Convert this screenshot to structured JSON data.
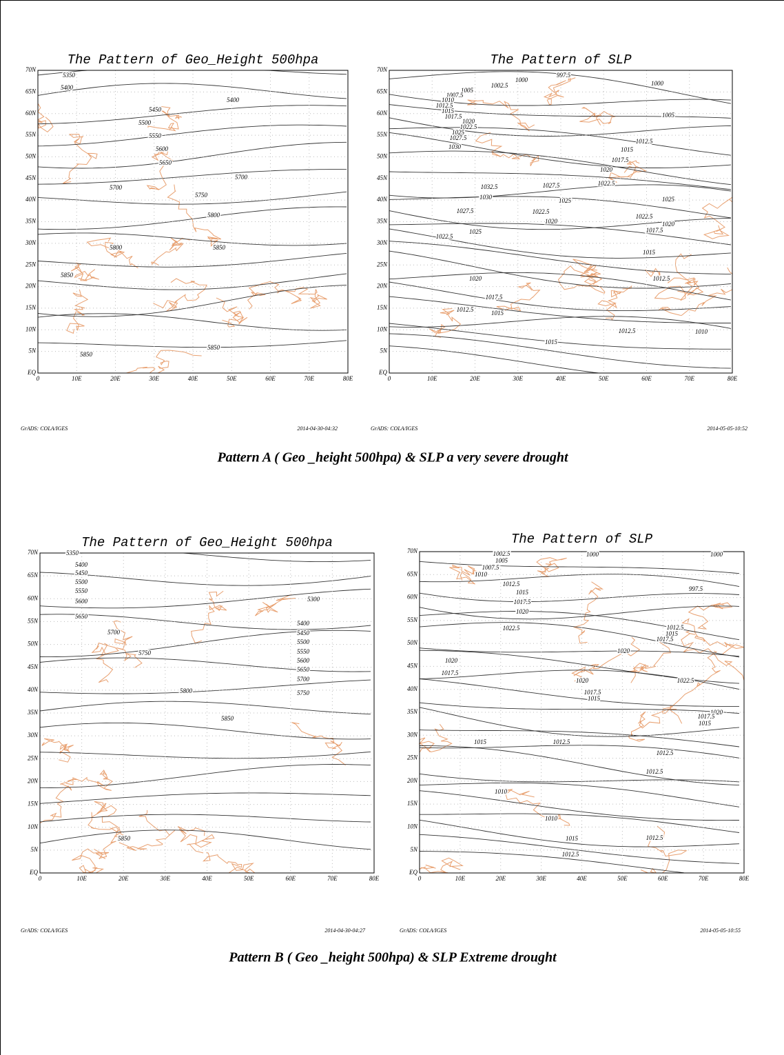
{
  "figures": [
    {
      "panels": [
        {
          "title": "The Pattern of Geo_Height 500hpa",
          "lat_labels": [
            "70N",
            "65N",
            "60N",
            "55N",
            "50N",
            "45N",
            "40N",
            "35N",
            "30N",
            "25N",
            "20N",
            "15N",
            "10N",
            "5N",
            "EQ"
          ],
          "lon_labels": [
            "0",
            "10E",
            "20E",
            "30E",
            "40E",
            "50E",
            "60E",
            "70E",
            "80E"
          ],
          "contour_labels": [
            "5350",
            "5400",
            "5400",
            "5450",
            "5500",
            "5550",
            "5600",
            "5650",
            "5700",
            "5700",
            "5750",
            "5800",
            "5800",
            "5850",
            "5850",
            "5850",
            "5850"
          ],
          "footer_left": "GrADS: COLA/IGES",
          "footer_right": "2014-04-30-04:32"
        },
        {
          "title": "The Pattern of SLP",
          "lat_labels": [
            "70N",
            "65N",
            "60N",
            "55N",
            "50N",
            "45N",
            "40N",
            "35N",
            "30N",
            "25N",
            "20N",
            "15N",
            "10N",
            "5N",
            "EQ"
          ],
          "lon_labels": [
            "0",
            "10E",
            "20E",
            "30E",
            "40E",
            "50E",
            "60E",
            "70E",
            "80E"
          ],
          "contour_labels": [
            "997.5",
            "1000",
            "1000",
            "1002.5",
            "1005",
            "1007.5",
            "1010",
            "1012.5",
            "1015",
            "1017.5",
            "1020",
            "1022.5",
            "1025",
            "1027.5",
            "1030",
            "1005",
            "1012.5",
            "1015",
            "1017.5",
            "1020",
            "1022.5",
            "1027.5",
            "1032.5",
            "1030",
            "1025",
            "1025",
            "1027.5",
            "1022.5",
            "1020",
            "1022.5",
            "1020",
            "1017.5",
            "1025",
            "1022.5",
            "1015",
            "1020",
            "1012.5",
            "1017.5",
            "1012.5",
            "1015",
            "1012.5",
            "1010",
            "1015"
          ],
          "footer_left": "GrADS: COLA/IGES",
          "footer_right": "2014-05-05-10:52"
        }
      ],
      "caption": "Pattern A ( Geo _height 500hpa) & SLP a very severe drought"
    },
    {
      "panels": [
        {
          "title": "The Pattern of Geo_Height 500hpa",
          "lat_labels": [
            "70N",
            "65N",
            "60N",
            "55N",
            "50N",
            "45N",
            "40N",
            "35N",
            "30N",
            "25N",
            "20N",
            "15N",
            "10N",
            "5N",
            "EQ"
          ],
          "lon_labels": [
            "0",
            "10E",
            "20E",
            "30E",
            "40E",
            "50E",
            "60E",
            "70E",
            "80E"
          ],
          "contour_labels": [
            "5350",
            "5400",
            "5450",
            "5500",
            "5550",
            "5600",
            "5650",
            "5700",
            "5750",
            "5800",
            "5850",
            "5300",
            "5400",
            "5450",
            "5500",
            "5550",
            "5600",
            "5650",
            "5700",
            "5750",
            "5850"
          ],
          "footer_left": "GrADS: COLA/IGES",
          "footer_right": "2014-04-30-04:27"
        },
        {
          "title": "The Pattern of SLP",
          "lat_labels": [
            "70N",
            "65N",
            "60N",
            "55N",
            "50N",
            "45N",
            "40N",
            "35N",
            "30N",
            "25N",
            "20N",
            "15N",
            "10N",
            "5N",
            "EQ"
          ],
          "lon_labels": [
            "0",
            "10E",
            "20E",
            "30E",
            "40E",
            "50E",
            "60E",
            "70E",
            "80E"
          ],
          "contour_labels": [
            "1002.5",
            "1000",
            "1000",
            "1005",
            "1007.5",
            "1010",
            "1012.5",
            "1015",
            "1017.5",
            "1020",
            "997.5",
            "1022.5",
            "1012.5",
            "1015",
            "1017.5",
            "1020",
            "1020",
            "1017.5",
            "1022.5",
            "1020",
            "1017.5",
            "1015",
            "1020",
            "1017.5",
            "1015",
            "1015",
            "1012.5",
            "1012.5",
            "1012.5",
            "1010",
            "1010",
            "1015",
            "1012.5",
            "1012.5"
          ],
          "footer_left": "GrADS: COLA/IGES",
          "footer_right": "2014-05-05-10:55"
        }
      ],
      "caption": "Pattern B ( Geo _height 500hpa) & SLP Extreme drought"
    }
  ]
}
